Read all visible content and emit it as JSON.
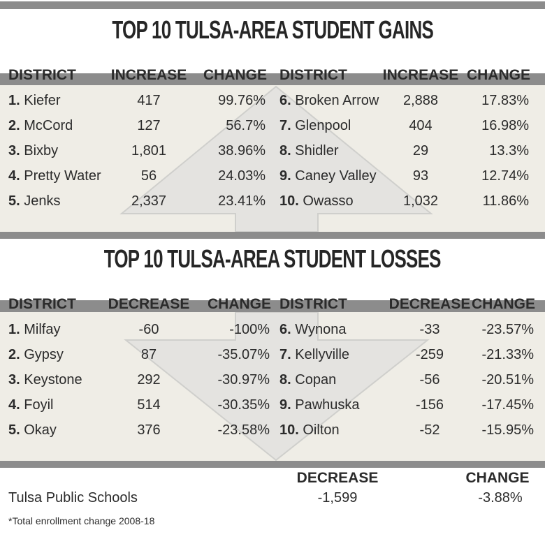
{
  "gains": {
    "title": "TOP 10 TULSA-AREA STUDENT GAINS",
    "headers": [
      "DISTRICT",
      "INCREASE",
      "CHANGE"
    ],
    "rows": [
      {
        "rank": "1.",
        "district": "Kiefer",
        "value": "417",
        "change": "99.76%"
      },
      {
        "rank": "2.",
        "district": "McCord",
        "value": "127",
        "change": "56.7%"
      },
      {
        "rank": "3.",
        "district": "Bixby",
        "value": "1,801",
        "change": "38.96%"
      },
      {
        "rank": "4.",
        "district": "Pretty Water",
        "value": "56",
        "change": "24.03%"
      },
      {
        "rank": "5.",
        "district": "Jenks",
        "value": "2,337",
        "change": "23.41%"
      },
      {
        "rank": "6.",
        "district": "Broken Arrow",
        "value": "2,888",
        "change": "17.83%"
      },
      {
        "rank": "7.",
        "district": "Glenpool",
        "value": "404",
        "change": "16.98%"
      },
      {
        "rank": "8.",
        "district": "Shidler",
        "value": "29",
        "change": "13.3%"
      },
      {
        "rank": "9.",
        "district": "Caney Valley",
        "value": "93",
        "change": "12.74%"
      },
      {
        "rank": "10.",
        "district": "Owasso",
        "value": "1,032",
        "change": "11.86%"
      }
    ]
  },
  "losses": {
    "title": "TOP 10 TULSA-AREA STUDENT LOSSES",
    "headers": [
      "DISTRICT",
      "DECREASE",
      "CHANGE"
    ],
    "rows": [
      {
        "rank": "1.",
        "district": "Milfay",
        "value": "-60",
        "change": "-100%"
      },
      {
        "rank": "2.",
        "district": "Gypsy",
        "value": "87",
        "change": "-35.07%"
      },
      {
        "rank": "3.",
        "district": "Keystone",
        "value": "292",
        "change": "-30.97%"
      },
      {
        "rank": "4.",
        "district": "Foyil",
        "value": "514",
        "change": "-30.35%"
      },
      {
        "rank": "5.",
        "district": "Okay",
        "value": "376",
        "change": "-23.58%"
      },
      {
        "rank": "6.",
        "district": "Wynona",
        "value": "-33",
        "change": "-23.57%"
      },
      {
        "rank": "7.",
        "district": "Kellyville",
        "value": "-259",
        "change": "-21.33%"
      },
      {
        "rank": "8.",
        "district": "Copan",
        "value": "-56",
        "change": "-20.51%"
      },
      {
        "rank": "9.",
        "district": "Pawhuska",
        "value": "-156",
        "change": "-17.45%"
      },
      {
        "rank": "10.",
        "district": "Oilton",
        "value": "-52",
        "change": "-15.95%"
      }
    ]
  },
  "summary": {
    "headers": [
      "DECREASE",
      "CHANGE"
    ],
    "district": "Tulsa Public Schools",
    "value": "-1,599",
    "change": "-3.88%"
  },
  "footnote": "*Total enrollment change 2008-18",
  "colors": {
    "bar": "#8c8c8c",
    "panel": "#efede6",
    "arrow": "#e4e3e0",
    "text": "#2b2b2b"
  },
  "icons": {
    "gains": "up-arrow-icon",
    "losses": "down-arrow-icon"
  }
}
